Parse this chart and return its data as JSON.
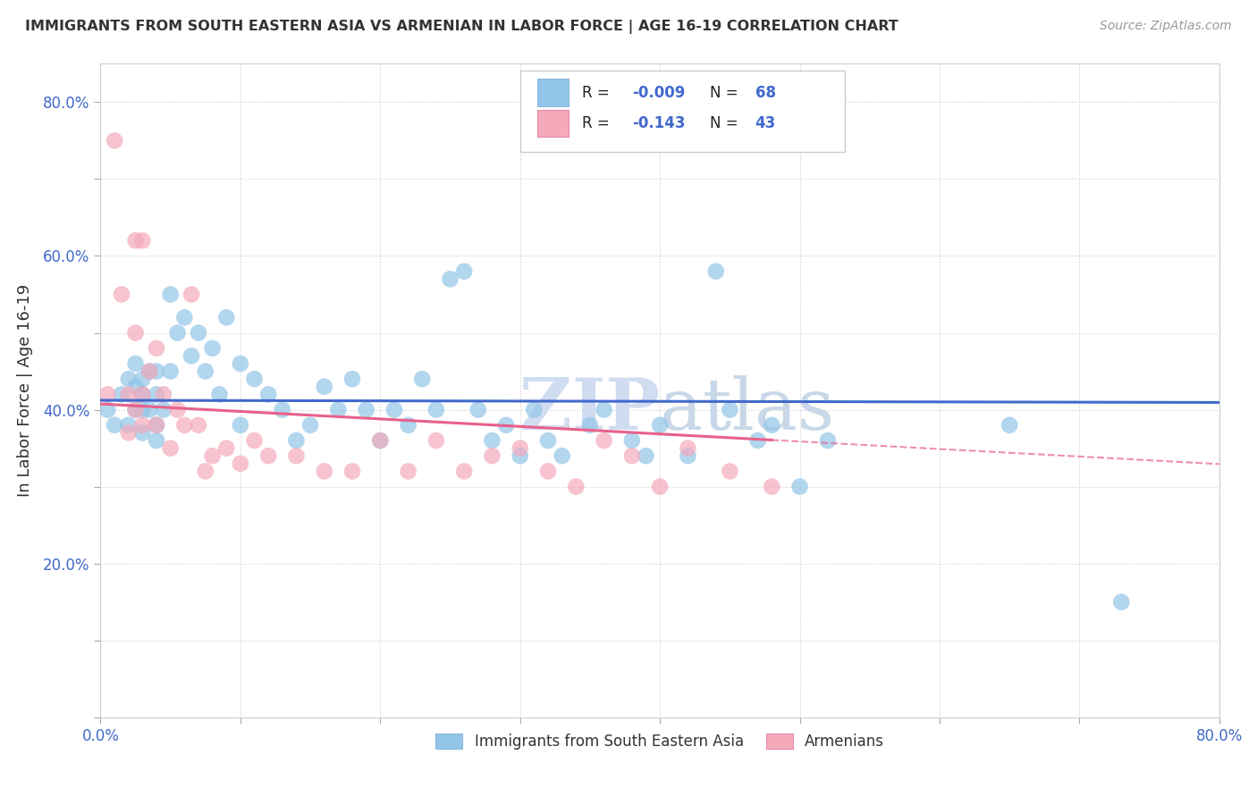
{
  "title": "IMMIGRANTS FROM SOUTH EASTERN ASIA VS ARMENIAN IN LABOR FORCE | AGE 16-19 CORRELATION CHART",
  "source": "Source: ZipAtlas.com",
  "ylabel": "In Labor Force | Age 16-19",
  "legend_label_blue": "Immigrants from South Eastern Asia",
  "legend_label_pink": "Armenians",
  "R_blue": -0.009,
  "N_blue": 68,
  "R_pink": -0.143,
  "N_pink": 43,
  "color_blue": "#92C5E8",
  "color_pink": "#F4AABB",
  "line_color_blue": "#4169CC",
  "line_color_pink": "#E8608A",
  "xlim": [
    0.0,
    0.8
  ],
  "ylim": [
    0.0,
    0.85
  ],
  "x_ticks": [
    0.0,
    0.1,
    0.2,
    0.3,
    0.4,
    0.5,
    0.6,
    0.7,
    0.8
  ],
  "y_ticks": [
    0.0,
    0.1,
    0.2,
    0.3,
    0.4,
    0.5,
    0.6,
    0.7,
    0.8
  ],
  "blue_x": [
    0.005,
    0.01,
    0.015,
    0.02,
    0.02,
    0.025,
    0.025,
    0.025,
    0.03,
    0.03,
    0.03,
    0.03,
    0.035,
    0.035,
    0.04,
    0.04,
    0.04,
    0.04,
    0.045,
    0.05,
    0.05,
    0.055,
    0.06,
    0.065,
    0.07,
    0.075,
    0.08,
    0.085,
    0.09,
    0.1,
    0.1,
    0.11,
    0.12,
    0.13,
    0.14,
    0.15,
    0.16,
    0.17,
    0.18,
    0.19,
    0.2,
    0.21,
    0.22,
    0.23,
    0.24,
    0.25,
    0.26,
    0.27,
    0.28,
    0.29,
    0.3,
    0.31,
    0.32,
    0.33,
    0.35,
    0.36,
    0.38,
    0.39,
    0.4,
    0.42,
    0.44,
    0.45,
    0.47,
    0.48,
    0.5,
    0.52,
    0.65,
    0.73
  ],
  "blue_y": [
    0.4,
    0.38,
    0.42,
    0.44,
    0.38,
    0.46,
    0.43,
    0.4,
    0.44,
    0.42,
    0.4,
    0.37,
    0.45,
    0.4,
    0.45,
    0.42,
    0.38,
    0.36,
    0.4,
    0.55,
    0.45,
    0.5,
    0.52,
    0.47,
    0.5,
    0.45,
    0.48,
    0.42,
    0.52,
    0.46,
    0.38,
    0.44,
    0.42,
    0.4,
    0.36,
    0.38,
    0.43,
    0.4,
    0.44,
    0.4,
    0.36,
    0.4,
    0.38,
    0.44,
    0.4,
    0.57,
    0.58,
    0.4,
    0.36,
    0.38,
    0.34,
    0.4,
    0.36,
    0.34,
    0.38,
    0.4,
    0.36,
    0.34,
    0.38,
    0.34,
    0.58,
    0.4,
    0.36,
    0.38,
    0.3,
    0.36,
    0.38,
    0.15
  ],
  "pink_x": [
    0.005,
    0.01,
    0.015,
    0.02,
    0.02,
    0.025,
    0.025,
    0.025,
    0.03,
    0.03,
    0.03,
    0.035,
    0.04,
    0.04,
    0.045,
    0.05,
    0.055,
    0.06,
    0.065,
    0.07,
    0.075,
    0.08,
    0.09,
    0.1,
    0.11,
    0.12,
    0.14,
    0.16,
    0.18,
    0.2,
    0.22,
    0.24,
    0.26,
    0.28,
    0.3,
    0.32,
    0.34,
    0.36,
    0.38,
    0.4,
    0.42,
    0.45,
    0.48
  ],
  "pink_y": [
    0.42,
    0.75,
    0.55,
    0.42,
    0.37,
    0.62,
    0.5,
    0.4,
    0.62,
    0.42,
    0.38,
    0.45,
    0.48,
    0.38,
    0.42,
    0.35,
    0.4,
    0.38,
    0.55,
    0.38,
    0.32,
    0.34,
    0.35,
    0.33,
    0.36,
    0.34,
    0.34,
    0.32,
    0.32,
    0.36,
    0.32,
    0.36,
    0.32,
    0.34,
    0.35,
    0.32,
    0.3,
    0.36,
    0.34,
    0.3,
    0.35,
    0.32,
    0.3
  ]
}
